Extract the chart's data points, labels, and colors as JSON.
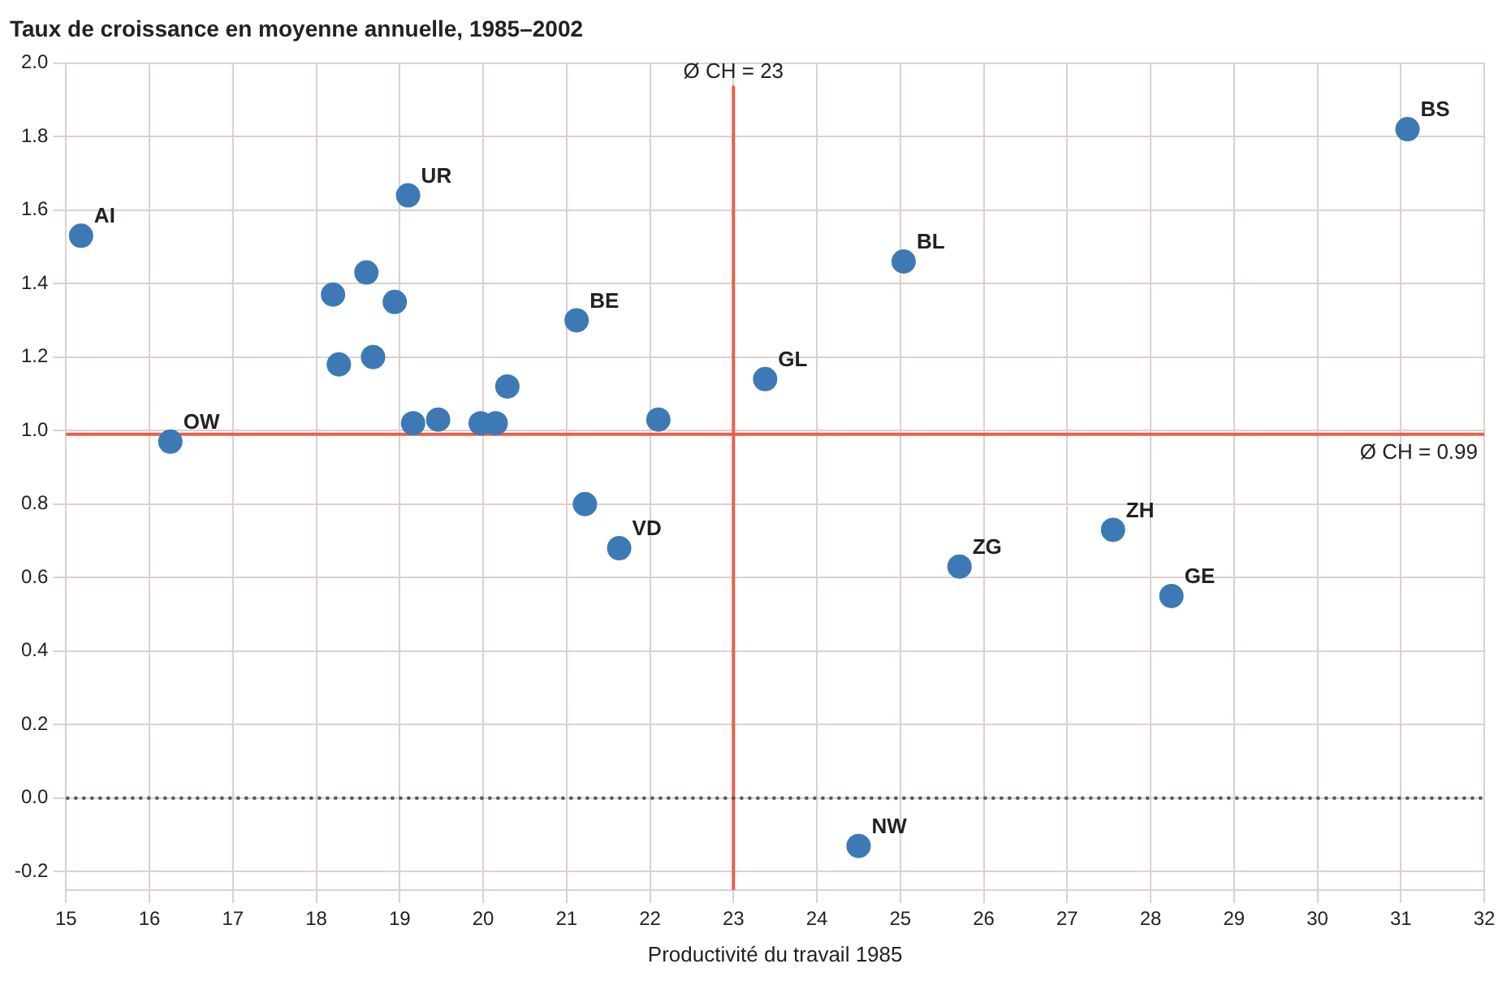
{
  "chart_data": {
    "type": "scatter",
    "title": "Taux de croissance en moyenne annuelle, 1985–2002",
    "xlabel": "Productivité du travail 1985",
    "x": [
      15.18,
      16.25,
      19.1,
      18.6,
      18.2,
      18.94,
      18.27,
      18.68,
      19.16,
      19.46,
      19.97,
      20.15,
      20.29,
      21.12,
      22.1,
      21.22,
      21.63,
      23.38,
      25.04,
      31.08,
      25.71,
      27.55,
      28.25,
      24.5
    ],
    "values": [
      1.53,
      0.97,
      1.64,
      1.43,
      1.37,
      1.35,
      1.18,
      1.2,
      1.02,
      1.03,
      1.02,
      1.02,
      1.12,
      1.3,
      1.03,
      0.8,
      0.68,
      1.14,
      1.46,
      1.82,
      0.63,
      0.73,
      0.55,
      -0.13
    ],
    "color": "#3d7ab5",
    "marker": "circle",
    "xlim": [
      15,
      32
    ],
    "xticks": [
      15,
      16,
      17,
      18,
      19,
      20,
      21,
      22,
      23,
      24,
      25,
      26,
      27,
      28,
      29,
      30,
      31,
      32
    ],
    "ylim": [
      -0.25,
      2.0
    ],
    "yticks": [
      {
        "value": -0.2,
        "label": "-0.2"
      },
      {
        "value": 0,
        "label": "0.0"
      },
      {
        "value": 0.2,
        "label": "0.2"
      },
      {
        "value": 0.4,
        "label": "0.4"
      },
      {
        "value": 0.6,
        "label": "0.6"
      },
      {
        "value": 0.8,
        "label": "0.8"
      },
      {
        "value": 1,
        "label": "1.0"
      },
      {
        "value": 1.2,
        "label": "1.2"
      },
      {
        "value": 1.4,
        "label": "1.4"
      },
      {
        "value": 1.6,
        "label": "1.6"
      },
      {
        "value": 1.8,
        "label": "1.8"
      },
      {
        "value": 2,
        "label": "2.0"
      }
    ],
    "grid": true,
    "legend": false,
    "ref_lines": [
      {
        "axis": "x",
        "value": 23,
        "label": "Ø CH = 23",
        "color": "#e8604c"
      },
      {
        "axis": "y",
        "value": 0.99,
        "label": "Ø CH = 0.99",
        "color": "#e8604c"
      },
      {
        "axis": "y",
        "value": 0,
        "color": "#555555",
        "line_style": "dotted"
      }
    ],
    "annotations": [
      {
        "text": "AI",
        "x": 15.18,
        "y": 1.53
      },
      {
        "text": "OW",
        "x": 16.25,
        "y": 0.97
      },
      {
        "text": "UR",
        "x": 19.1,
        "y": 1.64
      },
      {
        "text": "BE",
        "x": 21.12,
        "y": 1.3
      },
      {
        "text": "VD",
        "x": 21.63,
        "y": 0.68
      },
      {
        "text": "GL",
        "x": 23.38,
        "y": 1.14
      },
      {
        "text": "BL",
        "x": 25.04,
        "y": 1.46
      },
      {
        "text": "BS",
        "x": 31.08,
        "y": 1.82
      },
      {
        "text": "ZG",
        "x": 25.71,
        "y": 0.63
      },
      {
        "text": "ZH",
        "x": 27.55,
        "y": 0.73
      },
      {
        "text": "GE",
        "x": 28.25,
        "y": 0.55
      },
      {
        "text": "NW",
        "x": 24.5,
        "y": -0.13
      }
    ]
  }
}
